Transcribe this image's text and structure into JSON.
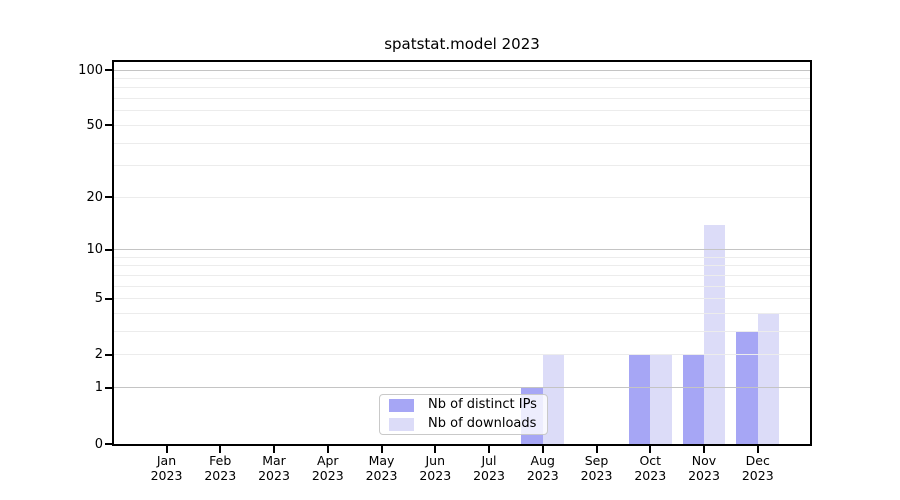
{
  "chart_data": {
    "type": "bar",
    "title": "spatstat.model 2023",
    "categories": [
      "Jan",
      "Feb",
      "Mar",
      "Apr",
      "May",
      "Jun",
      "Jul",
      "Aug",
      "Sep",
      "Oct",
      "Nov",
      "Dec"
    ],
    "x_tick_year": "2023",
    "series": [
      {
        "name": "Nb of distinct IPs",
        "color": "#a6a6f5",
        "values": [
          0,
          0,
          0,
          0,
          0,
          0,
          0,
          1,
          0,
          2,
          2,
          3
        ]
      },
      {
        "name": "Nb of downloads",
        "color": "#dcdcf8",
        "values": [
          0,
          0,
          0,
          0,
          0,
          0,
          0,
          2,
          0,
          2,
          14,
          4
        ]
      }
    ],
    "y_scale": "log10(1+x)",
    "y_max": 112,
    "y_ticks": [
      0,
      1,
      2,
      5,
      10,
      20,
      50,
      100
    ],
    "grid": {
      "major_values": [
        1,
        10,
        100
      ],
      "minor_values": [
        2,
        3,
        4,
        5,
        6,
        7,
        8,
        9,
        20,
        30,
        40,
        50,
        60,
        70,
        80,
        90
      ],
      "major_color": "#c4c4c4",
      "minor_color": "#ececec"
    },
    "legend_position": "inside-bottom-center",
    "axis_color": "#000000",
    "background_color": "#ffffff"
  }
}
